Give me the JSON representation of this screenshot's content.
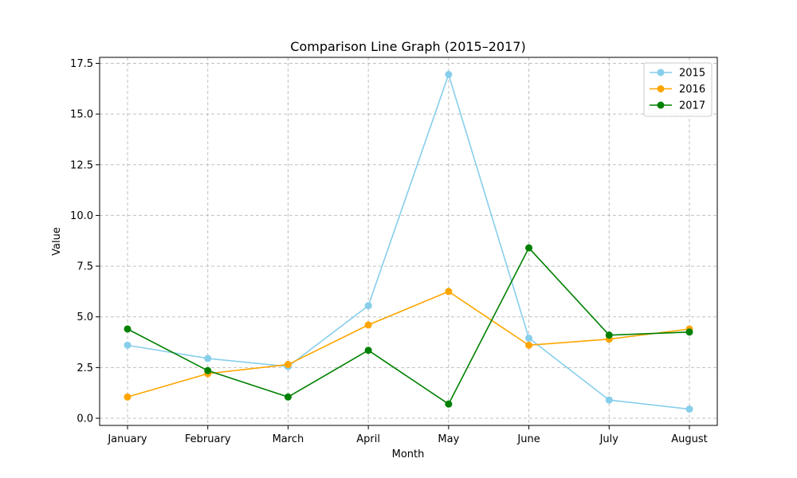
{
  "chart_data": {
    "type": "line",
    "title": "Comparison Line Graph (2015–2017)",
    "xlabel": "Month",
    "ylabel": "Value",
    "categories": [
      "January",
      "February",
      "March",
      "April",
      "May",
      "June",
      "July",
      "August"
    ],
    "yticks": [
      "0.0",
      "2.5",
      "5.0",
      "7.5",
      "10.0",
      "12.5",
      "15.0",
      "17.5"
    ],
    "ylim": [
      -0.35,
      17.8
    ],
    "grid": true,
    "legend_position": "top-right",
    "series": [
      {
        "name": "2015",
        "color": "#87CEEB",
        "values": [
          3.6,
          2.95,
          2.55,
          5.55,
          16.95,
          3.95,
          0.9,
          0.45
        ]
      },
      {
        "name": "2016",
        "color": "#FFA500",
        "values": [
          1.05,
          2.2,
          2.65,
          4.6,
          6.25,
          3.6,
          3.9,
          4.4
        ]
      },
      {
        "name": "2017",
        "color": "#008000",
        "values": [
          4.4,
          2.35,
          1.05,
          3.35,
          0.7,
          8.4,
          4.1,
          4.25
        ]
      }
    ]
  }
}
